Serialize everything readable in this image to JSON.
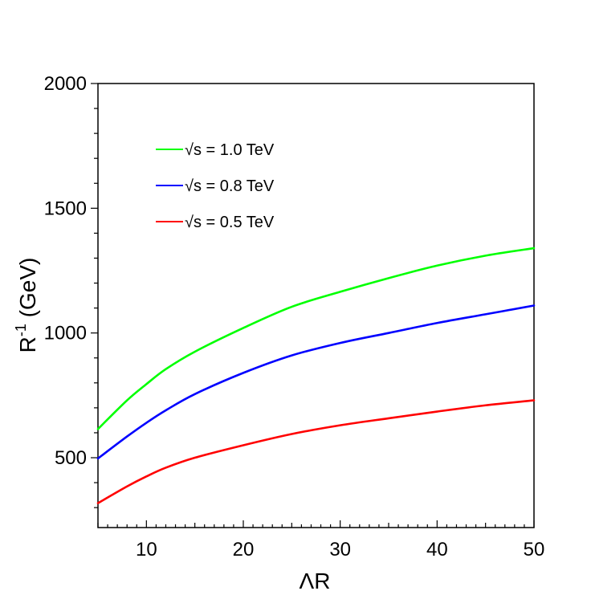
{
  "chart_data": {
    "type": "line",
    "title": "",
    "xlabel": "ΛR",
    "ylabel_main": "R",
    "ylabel_superscript": "-1",
    "ylabel_unit": " (GeV)",
    "xlim": [
      5,
      50
    ],
    "ylim": [
      220,
      2000
    ],
    "x_ticks": [
      10,
      20,
      30,
      40,
      50
    ],
    "y_ticks": [
      500,
      1000,
      1500,
      2000
    ],
    "grid": false,
    "legend_placement": "top-left",
    "series": [
      {
        "name": "√s = 1.0 TeV",
        "color": "#00ff00",
        "x": [
          5,
          8,
          10,
          12,
          15,
          20,
          25,
          30,
          35,
          40,
          45,
          50
        ],
        "y": [
          615,
          730,
          795,
          855,
          925,
          1020,
          1105,
          1165,
          1220,
          1270,
          1310,
          1340
        ]
      },
      {
        "name": "√s = 0.8 TeV",
        "color": "#0000ff",
        "x": [
          5,
          8,
          10,
          12,
          15,
          20,
          25,
          30,
          35,
          40,
          45,
          50
        ],
        "y": [
          497,
          585,
          640,
          690,
          755,
          840,
          910,
          960,
          1000,
          1040,
          1075,
          1110
        ]
      },
      {
        "name": "√s = 0.5 TeV",
        "color": "#ff0000",
        "x": [
          5,
          8,
          10,
          12,
          15,
          20,
          25,
          30,
          35,
          40,
          45,
          50
        ],
        "y": [
          318,
          385,
          425,
          460,
          500,
          550,
          595,
          630,
          658,
          685,
          710,
          730
        ]
      }
    ]
  }
}
